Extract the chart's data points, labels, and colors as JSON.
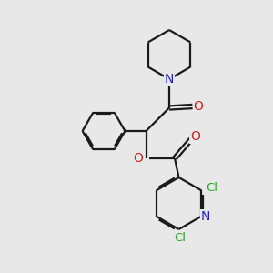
{
  "bg_color": "#e8e8e8",
  "bond_color": "#1a1a1a",
  "N_color": "#2222cc",
  "O_color": "#cc2222",
  "Cl_color": "#22aa22",
  "line_width": 1.6,
  "fig_size": [
    3.0,
    3.0
  ],
  "dpi": 100,
  "xlim": [
    0,
    10
  ],
  "ylim": [
    0,
    10
  ]
}
